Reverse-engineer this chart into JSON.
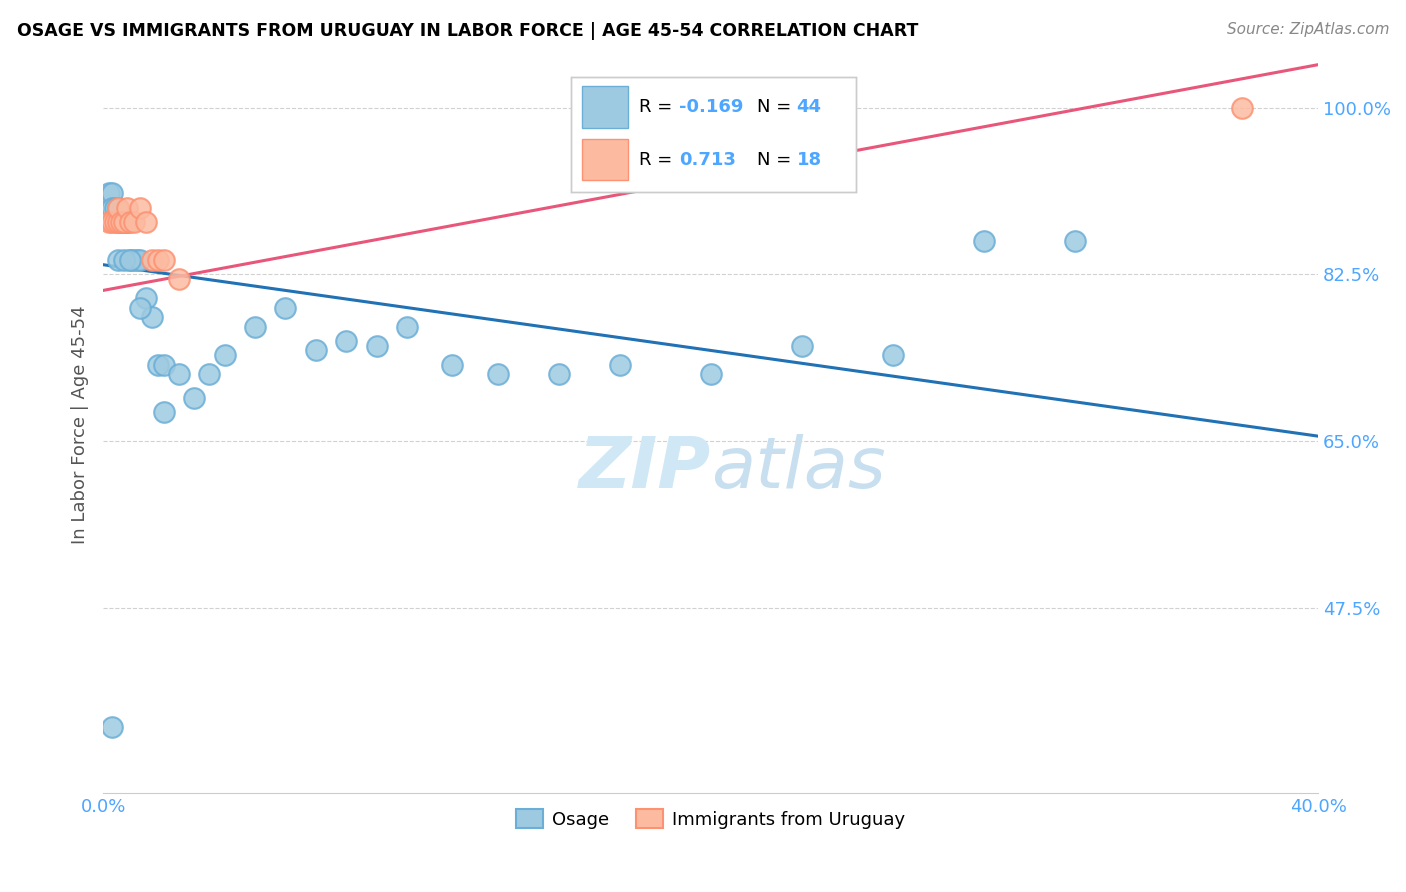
{
  "title": "OSAGE VS IMMIGRANTS FROM URUGUAY IN LABOR FORCE | AGE 45-54 CORRELATION CHART",
  "source": "Source: ZipAtlas.com",
  "ylabel": "In Labor Force | Age 45-54",
  "x_min": 0.0,
  "x_max": 0.4,
  "y_min": 0.28,
  "y_max": 1.055,
  "y_ticks": [
    0.475,
    0.65,
    0.825,
    1.0
  ],
  "y_tick_labels": [
    "47.5%",
    "65.0%",
    "82.5%",
    "100.0%"
  ],
  "x_ticks": [
    0.0,
    0.1,
    0.2,
    0.3,
    0.4
  ],
  "x_tick_labels": [
    "0.0%",
    "",
    "",
    "",
    "40.0%"
  ],
  "blue_color": "#9ecae1",
  "pink_color": "#fcbba1",
  "blue_edge_color": "#6baed6",
  "pink_edge_color": "#fc9272",
  "blue_line_color": "#2171b5",
  "pink_line_color": "#e8567a",
  "watermark_color": "#d0e8f5",
  "tick_color": "#4da6ff",
  "grid_color": "#cccccc",
  "osage_x": [
    0.002,
    0.003,
    0.003,
    0.004,
    0.005,
    0.005,
    0.006,
    0.006,
    0.007,
    0.008,
    0.008,
    0.009,
    0.01,
    0.011,
    0.012,
    0.014,
    0.016,
    0.018,
    0.02,
    0.025,
    0.03,
    0.035,
    0.04,
    0.05,
    0.06,
    0.07,
    0.08,
    0.09,
    0.1,
    0.115,
    0.13,
    0.15,
    0.17,
    0.2,
    0.23,
    0.26,
    0.29,
    0.32,
    0.005,
    0.007,
    0.009,
    0.012,
    0.02,
    0.003
  ],
  "osage_y": [
    0.91,
    0.91,
    0.895,
    0.895,
    0.895,
    0.88,
    0.88,
    0.88,
    0.88,
    0.88,
    0.88,
    0.84,
    0.84,
    0.84,
    0.84,
    0.8,
    0.78,
    0.73,
    0.73,
    0.72,
    0.695,
    0.72,
    0.74,
    0.77,
    0.79,
    0.745,
    0.755,
    0.75,
    0.77,
    0.73,
    0.72,
    0.72,
    0.73,
    0.72,
    0.75,
    0.74,
    0.86,
    0.86,
    0.84,
    0.84,
    0.84,
    0.79,
    0.68,
    0.35
  ],
  "uruguay_x": [
    0.002,
    0.003,
    0.004,
    0.005,
    0.005,
    0.006,
    0.007,
    0.008,
    0.009,
    0.01,
    0.012,
    0.014,
    0.016,
    0.018,
    0.02,
    0.025,
    0.195,
    0.375
  ],
  "uruguay_y": [
    0.88,
    0.88,
    0.88,
    0.88,
    0.895,
    0.88,
    0.88,
    0.895,
    0.88,
    0.88,
    0.895,
    0.88,
    0.84,
    0.84,
    0.84,
    0.82,
    1.0,
    1.0
  ],
  "blue_line_x0": 0.0,
  "blue_line_x1": 0.4,
  "blue_line_y0": 0.835,
  "blue_line_y1": 0.655,
  "pink_line_x0": 0.0,
  "pink_line_x1": 0.4,
  "pink_line_y0": 0.808,
  "pink_line_y1": 1.045
}
